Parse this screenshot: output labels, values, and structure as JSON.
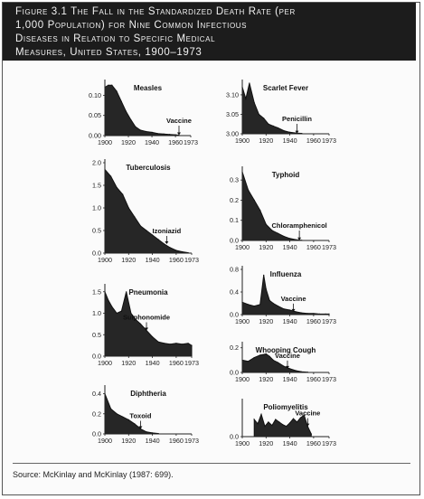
{
  "figure": {
    "title_lines": [
      "Figure 3.1 The Fall in the Standardized Death Rate (per",
      "1,000 Population) for Nine Common Infectious",
      "Diseases in Relation to Specific Medical",
      "Measures, United States, 1900–1973"
    ],
    "source": "Source: McKinlay and McKinlay (1987: 699)."
  },
  "chart_data": [
    {
      "type": "area",
      "title": "Measles",
      "x_ticks": [
        "1900",
        "1920",
        "1940",
        "1960",
        "1973"
      ],
      "y_ticks": [
        "0.10",
        "0.05",
        "0.00"
      ],
      "ylim": [
        0,
        0.13
      ],
      "x": [
        1900,
        1903,
        1906,
        1910,
        1914,
        1918,
        1922,
        1926,
        1930,
        1935,
        1940,
        1945,
        1950,
        1955,
        1960,
        1963
      ],
      "values": [
        0.12,
        0.125,
        0.125,
        0.11,
        0.085,
        0.06,
        0.04,
        0.022,
        0.014,
        0.01,
        0.008,
        0.005,
        0.004,
        0.003,
        0.002,
        0.001
      ],
      "annotation": {
        "label": "Vaccine",
        "year": 1963,
        "value": 0.001
      }
    },
    {
      "type": "area",
      "title": "Scarlet Fever",
      "x_ticks": [
        "1900",
        "1920",
        "1940",
        "1960",
        "1973"
      ],
      "y_ticks": [
        "3.10",
        "3.05",
        "3.00"
      ],
      "ylim": [
        3.0,
        3.13
      ],
      "x": [
        1900,
        1903,
        1906,
        1910,
        1914,
        1918,
        1922,
        1926,
        1930,
        1935,
        1940,
        1945,
        1950
      ],
      "values": [
        3.12,
        3.09,
        3.13,
        3.08,
        3.05,
        3.04,
        3.025,
        3.02,
        3.015,
        3.008,
        3.004,
        3.002,
        3.001
      ],
      "annotation": {
        "label": "Penicillin",
        "year": 1946,
        "value": 3.001
      }
    },
    {
      "type": "area",
      "title": "Tuberculosis",
      "x_ticks": [
        "1900",
        "1920",
        "1940",
        "1960",
        "1973"
      ],
      "y_ticks": [
        "2.0",
        "1.5",
        "1.0",
        "0.5",
        "0.0"
      ],
      "ylim": [
        0,
        2.0
      ],
      "x": [
        1900,
        1905,
        1910,
        1915,
        1920,
        1925,
        1930,
        1935,
        1940,
        1945,
        1950,
        1955,
        1960,
        1965,
        1970
      ],
      "values": [
        1.85,
        1.7,
        1.45,
        1.3,
        1.0,
        0.8,
        0.6,
        0.5,
        0.4,
        0.3,
        0.2,
        0.12,
        0.06,
        0.03,
        0.01
      ],
      "annotation": {
        "label": "Izoniazid",
        "year": 1952,
        "value": 0.2
      }
    },
    {
      "type": "area",
      "title": "Typhoid",
      "x_ticks": [
        "1900",
        "1920",
        "1940",
        "1960",
        "1973"
      ],
      "y_ticks": [
        "0.3",
        "0.2",
        "0.1",
        "0.0"
      ],
      "ylim": [
        0,
        0.35
      ],
      "x": [
        1900,
        1905,
        1910,
        1915,
        1920,
        1925,
        1930,
        1935,
        1940,
        1945,
        1950
      ],
      "values": [
        0.34,
        0.25,
        0.2,
        0.15,
        0.08,
        0.05,
        0.035,
        0.02,
        0.01,
        0.004,
        0.001
      ],
      "annotation": {
        "label": "Chloramphenicol",
        "year": 1948,
        "value": 0.001
      }
    },
    {
      "type": "area",
      "title": "Pneumonia",
      "x_ticks": [
        "1900",
        "1920",
        "1940",
        "1960",
        "1973"
      ],
      "y_ticks": [
        "1.5",
        "1.0",
        "0.5",
        "0.0"
      ],
      "ylim": [
        0,
        1.6
      ],
      "x": [
        1900,
        1903,
        1906,
        1910,
        1914,
        1918,
        1922,
        1926,
        1930,
        1935,
        1940,
        1945,
        1950,
        1955,
        1960,
        1965,
        1970,
        1973
      ],
      "values": [
        1.5,
        1.3,
        1.15,
        1.0,
        1.05,
        1.5,
        1.0,
        0.85,
        0.75,
        0.6,
        0.45,
        0.33,
        0.3,
        0.28,
        0.3,
        0.28,
        0.3,
        0.25
      ],
      "annotation": {
        "label": "Sulphonomide",
        "year": 1935,
        "value": 0.6
      }
    },
    {
      "type": "area",
      "title": "Influenza",
      "x_ticks": [
        "1900",
        "1920",
        "1940",
        "1960",
        "1973"
      ],
      "y_ticks": [
        "0.8",
        "0.4",
        "0.0"
      ],
      "ylim": [
        0,
        0.8
      ],
      "x": [
        1900,
        1905,
        1910,
        1915,
        1918,
        1920,
        1923,
        1926,
        1930,
        1935,
        1940,
        1945,
        1950,
        1955,
        1960,
        1965,
        1970,
        1973
      ],
      "values": [
        0.22,
        0.18,
        0.15,
        0.18,
        0.7,
        0.45,
        0.25,
        0.2,
        0.15,
        0.1,
        0.08,
        0.05,
        0.03,
        0.02,
        0.02,
        0.01,
        0.01,
        0.01
      ],
      "annotation": {
        "label": "Vaccine",
        "year": 1943,
        "value": 0.05
      }
    },
    {
      "type": "area",
      "title": "Whooping Cough",
      "x_ticks": [
        "1900",
        "1920",
        "1940",
        "1960",
        "1973"
      ],
      "y_ticks": [
        "0.2",
        "0.0"
      ],
      "ylim": [
        0,
        0.22
      ],
      "x": [
        1900,
        1905,
        1910,
        1915,
        1920,
        1923,
        1926,
        1930,
        1935,
        1940,
        1945,
        1950,
        1955
      ],
      "values": [
        0.1,
        0.09,
        0.12,
        0.14,
        0.15,
        0.13,
        0.1,
        0.08,
        0.05,
        0.03,
        0.015,
        0.005,
        0.002
      ],
      "annotation": {
        "label": "Vaccine",
        "year": 1938,
        "value": 0.03
      }
    },
    {
      "type": "area",
      "title": "Diphtheria",
      "x_ticks": [
        "1900",
        "1920",
        "1940",
        "1960",
        "1973"
      ],
      "y_ticks": [
        "0.4",
        "0.2",
        "0.0"
      ],
      "ylim": [
        0,
        0.45
      ],
      "x": [
        1900,
        1905,
        1910,
        1915,
        1920,
        1925,
        1930,
        1935,
        1940,
        1945
      ],
      "values": [
        0.4,
        0.25,
        0.2,
        0.17,
        0.14,
        0.1,
        0.05,
        0.02,
        0.01,
        0.004
      ],
      "annotation": {
        "label": "Toxoid",
        "year": 1930,
        "value": 0.05
      }
    },
    {
      "type": "area",
      "title": "Poliomyelitis",
      "x_ticks": [
        "1900",
        "1920",
        "1940",
        "1960",
        "1973"
      ],
      "y_ticks": [
        "0.0"
      ],
      "ylim": [
        0,
        0.04
      ],
      "x": [
        1910,
        1913,
        1916,
        1919,
        1922,
        1925,
        1928,
        1931,
        1934,
        1937,
        1940,
        1943,
        1946,
        1949,
        1952,
        1955,
        1958
      ],
      "values": [
        0.02,
        0.015,
        0.026,
        0.012,
        0.017,
        0.013,
        0.02,
        0.017,
        0.014,
        0.012,
        0.016,
        0.021,
        0.017,
        0.022,
        0.025,
        0.012,
        0.003
      ],
      "annotation": {
        "label": "Vaccine",
        "year": 1955,
        "value": 0.012
      }
    }
  ]
}
